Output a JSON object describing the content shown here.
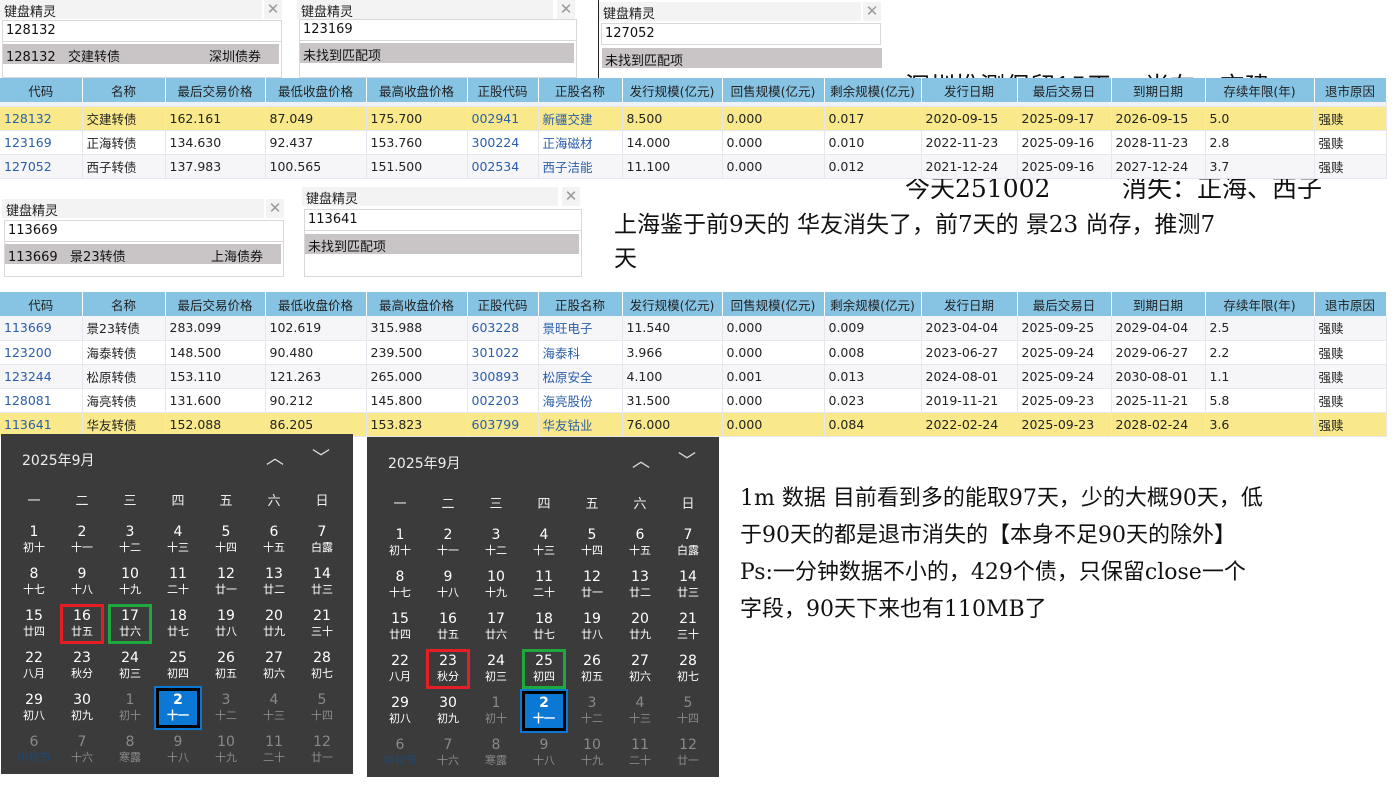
{
  "popups": [
    {
      "title": "键盘精灵",
      "value": "128132",
      "result_code": "128132",
      "result_name": "交建转债",
      "result_market": "深圳债券"
    },
    {
      "title": "键盘精灵",
      "value": "123169",
      "result_text": "未找到匹配项"
    },
    {
      "title": "键盘精灵",
      "value": "127052",
      "result_text": "未找到匹配项"
    },
    {
      "title": "键盘精灵",
      "value": "113669",
      "result_code": "113669",
      "result_name": "景23转债",
      "result_market": "上海债券"
    },
    {
      "title": "键盘精灵",
      "value": "113641",
      "result_text": "未找到匹配项"
    }
  ],
  "close_glyph": "✕",
  "notes": {
    "shenzhen_line1": "深圳推测保留15天， 尚在：交建",
    "shenzhen_line2": "今天251002         消失：正海、西子",
    "shanghai": "上海鉴于前9天的 华友消失了，前7天的 景23 尚存，推测7\n天",
    "summary": "1m 数据 目前看到多的能取97天，少的大概90天，低\n于90天的都是退市消失的【本身不足90天的除外】\nPs:一分钟数据不小的，429个债，只保留close一个\n字段，90天下来也有110MB了"
  },
  "table_columns": [
    "代码",
    "名称",
    "最后交易价格",
    "最低收盘价格",
    "最高收盘价格",
    "正股代码",
    "正股名称",
    "发行规模(亿元)",
    "回售规模(亿元)",
    "剩余规模(亿元)",
    "发行日期",
    "最后交易日",
    "到期日期",
    "存续年限(年)",
    "退市原因"
  ],
  "table1": [
    {
      "highlight": true,
      "cells": [
        "128132",
        "交建转债",
        "162.161",
        "87.049",
        "175.700",
        "002941",
        "新疆交建",
        "8.500",
        "0.000",
        "0.017",
        "2020-09-15",
        "2025-09-17",
        "2026-09-15",
        "5.0",
        "强赎"
      ]
    },
    {
      "highlight": false,
      "cells": [
        "123169",
        "正海转债",
        "134.630",
        "92.437",
        "153.760",
        "300224",
        "正海磁材",
        "14.000",
        "0.000",
        "0.010",
        "2022-11-23",
        "2025-09-16",
        "2028-11-23",
        "2.8",
        "强赎"
      ]
    },
    {
      "highlight": false,
      "cells": [
        "127052",
        "西子转债",
        "137.983",
        "100.565",
        "151.500",
        "002534",
        "西子洁能",
        "11.100",
        "0.000",
        "0.012",
        "2021-12-24",
        "2025-09-16",
        "2027-12-24",
        "3.7",
        "强赎"
      ]
    }
  ],
  "table2": [
    {
      "highlight": false,
      "cells": [
        "113669",
        "景23转债",
        "283.099",
        "102.619",
        "315.988",
        "603228",
        "景旺电子",
        "11.540",
        "0.000",
        "0.009",
        "2023-04-04",
        "2025-09-25",
        "2029-04-04",
        "2.5",
        "强赎"
      ]
    },
    {
      "highlight": false,
      "cells": [
        "123200",
        "海泰转债",
        "148.500",
        "90.480",
        "239.500",
        "301022",
        "海泰科",
        "3.966",
        "0.000",
        "0.008",
        "2023-06-27",
        "2025-09-24",
        "2029-06-27",
        "2.2",
        "强赎"
      ]
    },
    {
      "highlight": false,
      "cells": [
        "123244",
        "松原转债",
        "153.110",
        "121.263",
        "265.000",
        "300893",
        "松原安全",
        "4.100",
        "0.001",
        "0.013",
        "2024-08-01",
        "2025-09-24",
        "2030-08-01",
        "1.1",
        "强赎"
      ]
    },
    {
      "highlight": false,
      "cells": [
        "128081",
        "海亮转债",
        "131.600",
        "90.212",
        "145.800",
        "002203",
        "海亮股份",
        "31.500",
        "0.000",
        "0.023",
        "2019-11-21",
        "2025-09-23",
        "2025-11-21",
        "5.8",
        "强赎"
      ]
    },
    {
      "highlight": true,
      "cells": [
        "113641",
        "华友转债",
        "152.088",
        "86.205",
        "153.823",
        "603799",
        "华友钴业",
        "76.000",
        "0.000",
        "0.084",
        "2022-02-24",
        "2025-09-23",
        "2028-02-24",
        "3.6",
        "强赎"
      ]
    }
  ],
  "calendar": {
    "title": "2025年9月",
    "up_glyph": "︿",
    "down_glyph": "﹀",
    "weekdays": [
      "一",
      "二",
      "三",
      "四",
      "五",
      "六",
      "日"
    ],
    "days": [
      "1",
      "2",
      "3",
      "4",
      "5",
      "6",
      "7",
      "8",
      "9",
      "10",
      "11",
      "12",
      "13",
      "14",
      "15",
      "16",
      "17",
      "18",
      "19",
      "20",
      "21",
      "22",
      "23",
      "24",
      "25",
      "26",
      "27",
      "28",
      "29",
      "30",
      "1",
      "2",
      "3",
      "4",
      "5",
      "6",
      "7",
      "8",
      "9",
      "10",
      "11",
      "12"
    ],
    "lunar": [
      "初十",
      "十一",
      "十二",
      "十三",
      "十四",
      "十五",
      "白露",
      "十七",
      "十八",
      "十九",
      "二十",
      "廿一",
      "廿二",
      "廿三",
      "廿四",
      "廿五",
      "廿六",
      "廿七",
      "廿八",
      "廿九",
      "三十",
      "八月",
      "秋分",
      "初三",
      "初四",
      "初五",
      "初六",
      "初七",
      "初八",
      "初九",
      "初十",
      "十一",
      "十二",
      "十三",
      "十四",
      "中秋节",
      "十六",
      "寒露",
      "十八",
      "十九",
      "二十",
      "廿一"
    ],
    "current_month_days": 30,
    "today": "10月2日",
    "festival": "中秋节",
    "colors": {
      "red": "#e31e24",
      "green": "#1fa83c",
      "today": "#0a78d4"
    }
  },
  "calendars": [
    {
      "marks": {
        "red": "16",
        "green": "17"
      }
    },
    {
      "marks": {
        "red": "23",
        "green": "25"
      }
    }
  ]
}
